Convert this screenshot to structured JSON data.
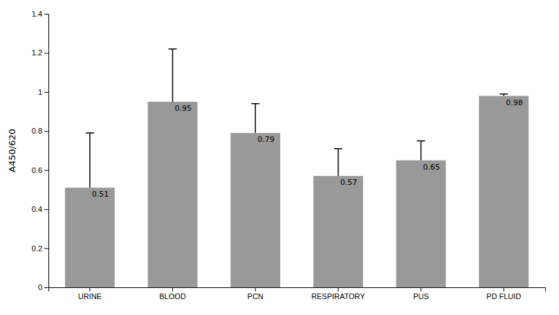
{
  "chart_data": {
    "type": "bar",
    "categories": [
      "URINE",
      "BLOOD",
      "PCN",
      "RESPIRATORY",
      "PUS",
      "PD FLUID"
    ],
    "values": [
      0.51,
      0.95,
      0.79,
      0.57,
      0.65,
      0.98
    ],
    "errors_upper": [
      0.28,
      0.27,
      0.15,
      0.14,
      0.1,
      0.01
    ],
    "color": "#999999",
    "ylabel": "A450/620",
    "ylim": [
      0,
      1.4
    ],
    "yticks": [
      0,
      0.2,
      0.4,
      0.6,
      0.8,
      1,
      1.2,
      1.4
    ],
    "data_labels": true,
    "grid": false
  }
}
